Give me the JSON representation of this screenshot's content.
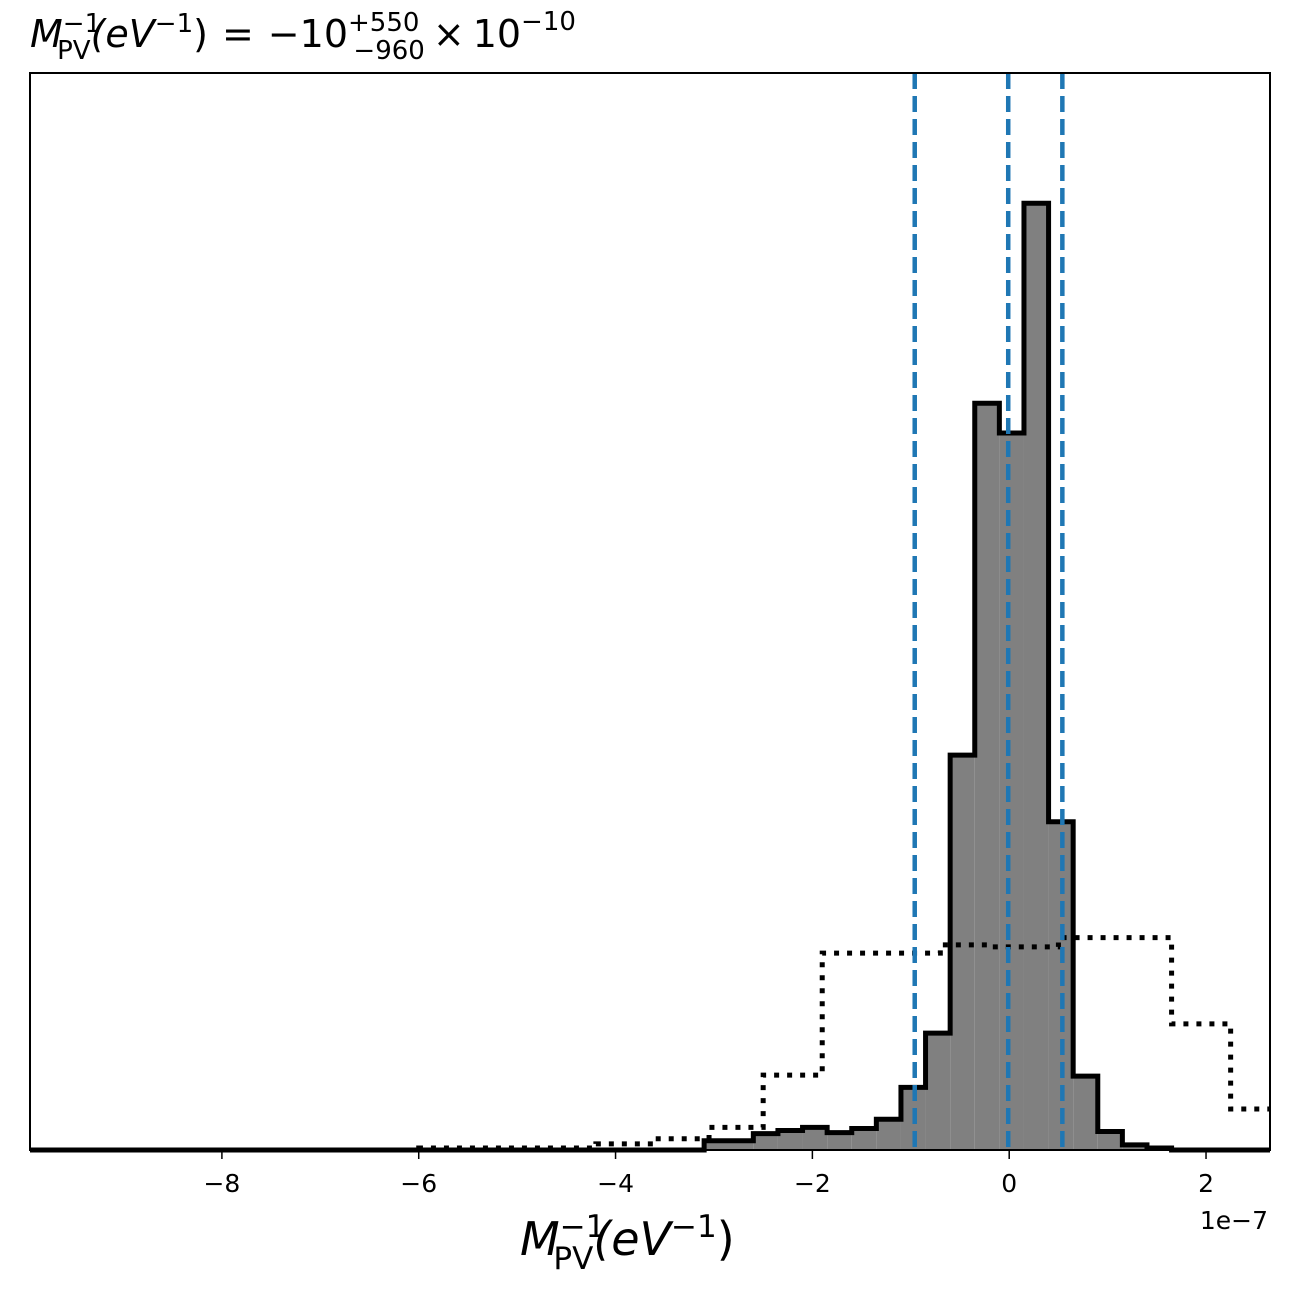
{
  "chart_data": {
    "type": "histogram",
    "title": {
      "symbol": "M",
      "symbol_sup": "−1",
      "symbol_sub": "PV",
      "unit": "(eV",
      "unit_sup": "−1",
      "unit_close": ")",
      "equals": "=",
      "mantissa": "−10",
      "err_plus": "+550",
      "err_minus": "−960",
      "times": "×",
      "base": "10",
      "exp": "−10"
    },
    "xlabel": {
      "symbol": "M",
      "symbol_sup": "−1",
      "symbol_sub": "PV",
      "unit": "(eV",
      "unit_sup": "−1",
      "unit_close": ")"
    },
    "x_offset_label": "1e−7",
    "xlim": [
      -9.95e-07,
      2.65e-07
    ],
    "ylim": [
      0,
      1.05
    ],
    "xticks": [
      {
        "value": -8e-07,
        "label": "−8"
      },
      {
        "value": -6e-07,
        "label": "−6"
      },
      {
        "value": -4e-07,
        "label": "−4"
      },
      {
        "value": -2e-07,
        "label": "−2"
      },
      {
        "value": 0,
        "label": "0"
      },
      {
        "value": 2e-07,
        "label": "2"
      }
    ],
    "y_axis_ticks": "none",
    "posterior": {
      "style": "filled step, grey fill, black outline",
      "fill": "#808080",
      "edge": "#000000",
      "bin_edges": [
        -9.95e-07,
        -3.1e-07,
        -2.6e-07,
        -2.35e-07,
        -2.1e-07,
        -1.85e-07,
        -1.6e-07,
        -1.35e-07,
        -1.1e-07,
        -8.5e-08,
        -6e-08,
        -3.5e-08,
        -1e-08,
        1.5e-08,
        4e-08,
        6.5e-08,
        9e-08,
        1.15e-07,
        1.4e-07,
        1.65e-07,
        2.65e-07
      ],
      "counts": [
        0.0,
        0.009,
        0.016,
        0.019,
        0.022,
        0.017,
        0.021,
        0.03,
        0.061,
        0.114,
        0.385,
        0.728,
        0.699,
        0.923,
        0.32,
        0.072,
        0.018,
        0.005,
        0.002,
        0.0
      ]
    },
    "prior": {
      "style": "dotted step outline",
      "edge": "#000000",
      "bin_edges": [
        -9.95e-07,
        -6e-07,
        -4.2e-07,
        -3.6e-07,
        -3.05e-07,
        -2.5e-07,
        -1.9e-07,
        -7e-08,
        -2e-08,
        5e-08,
        1.65e-07,
        2.25e-07,
        2.65e-07
      ],
      "counts": [
        0.0,
        0.002,
        0.006,
        0.011,
        0.022,
        0.073,
        0.192,
        0.2,
        0.198,
        0.207,
        0.123,
        0.04
      ]
    },
    "vlines": {
      "color": "#1f77b4",
      "style": "dashed",
      "values": [
        -9.6e-08,
        -1e-09,
        5.4e-08
      ]
    }
  }
}
